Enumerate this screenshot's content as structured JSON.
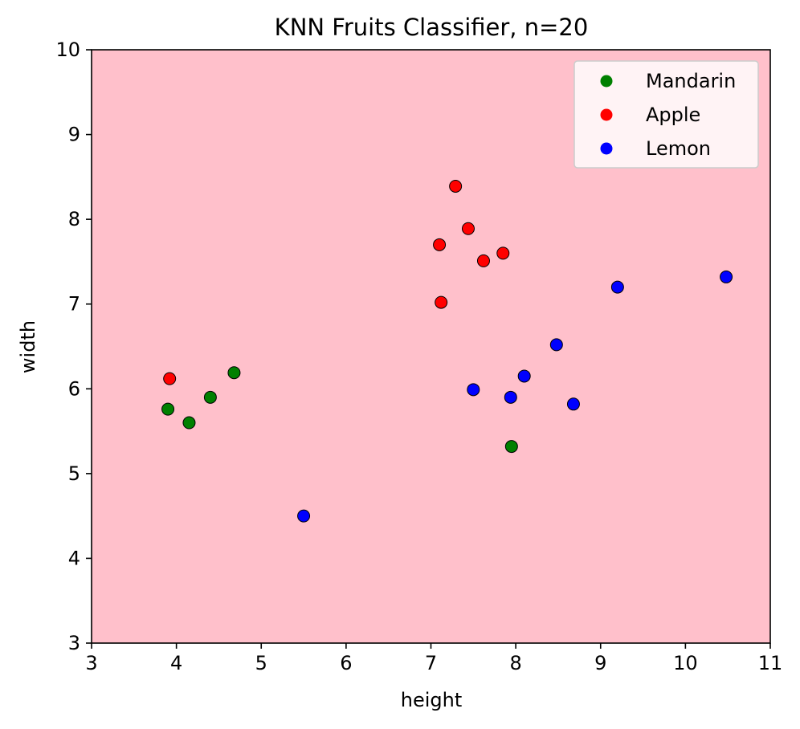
{
  "chart_data": {
    "type": "scatter",
    "title": "KNN Fruits Classifier, n=20",
    "xlabel": "height",
    "ylabel": "width",
    "xlim": [
      3,
      11
    ],
    "ylim": [
      3,
      10
    ],
    "xticks": [
      "3",
      "4",
      "5",
      "6",
      "7",
      "8",
      "9",
      "10",
      "11"
    ],
    "yticks": [
      "3",
      "4",
      "5",
      "6",
      "7",
      "8",
      "9",
      "10"
    ],
    "grid": false,
    "background_color": "#FFC0CB",
    "legend_position": "top-right",
    "series": [
      {
        "name": "Mandarin",
        "color": "#008000",
        "points": [
          [
            3.9,
            5.76
          ],
          [
            4.15,
            5.6
          ],
          [
            4.4,
            5.9
          ],
          [
            4.68,
            6.19
          ],
          [
            7.95,
            5.32
          ]
        ]
      },
      {
        "name": "Apple",
        "color": "#FF0000",
        "points": [
          [
            3.92,
            6.12
          ],
          [
            7.1,
            7.7
          ],
          [
            7.12,
            7.02
          ],
          [
            7.29,
            8.39
          ],
          [
            7.44,
            7.89
          ],
          [
            7.62,
            7.51
          ],
          [
            7.85,
            7.6
          ]
        ]
      },
      {
        "name": "Lemon",
        "color": "#0000FF",
        "points": [
          [
            5.5,
            4.5
          ],
          [
            7.5,
            5.99
          ],
          [
            7.94,
            5.9
          ],
          [
            8.1,
            6.15
          ],
          [
            8.48,
            6.52
          ],
          [
            8.68,
            5.82
          ],
          [
            9.2,
            7.2
          ],
          [
            10.48,
            7.32
          ]
        ]
      }
    ]
  }
}
